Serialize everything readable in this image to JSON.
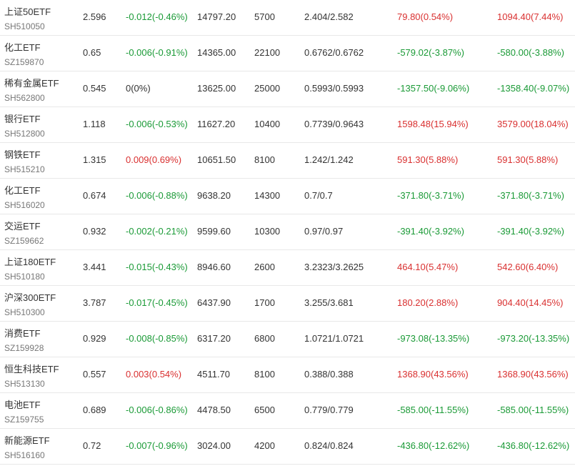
{
  "colors": {
    "up": "#d93030",
    "down": "#1a9a36",
    "flat": "#333333",
    "code": "#777777"
  },
  "rows": [
    {
      "name": "上证50ETF",
      "code": "SH510050",
      "price": "2.596",
      "change": "-0.012(-0.46%)",
      "change_dir": "down",
      "amount": "14797.20",
      "volume": "5700",
      "range": "2.404/2.582",
      "pl1": "79.80(0.54%)",
      "pl1_dir": "up",
      "pl2": "1094.40(7.44%)",
      "pl2_dir": "up"
    },
    {
      "name": "化工ETF",
      "code": "SZ159870",
      "price": "0.65",
      "change": "-0.006(-0.91%)",
      "change_dir": "down",
      "amount": "14365.00",
      "volume": "22100",
      "range": "0.6762/0.6762",
      "pl1": "-579.02(-3.87%)",
      "pl1_dir": "down",
      "pl2": "-580.00(-3.88%)",
      "pl2_dir": "down"
    },
    {
      "name": "稀有金属ETF",
      "code": "SH562800",
      "price": "0.545",
      "change": "0(0%)",
      "change_dir": "flat",
      "amount": "13625.00",
      "volume": "25000",
      "range": "0.5993/0.5993",
      "pl1": "-1357.50(-9.06%)",
      "pl1_dir": "down",
      "pl2": "-1358.40(-9.07%)",
      "pl2_dir": "down"
    },
    {
      "name": "银行ETF",
      "code": "SH512800",
      "price": "1.118",
      "change": "-0.006(-0.53%)",
      "change_dir": "down",
      "amount": "11627.20",
      "volume": "10400",
      "range": "0.7739/0.9643",
      "pl1": "1598.48(15.94%)",
      "pl1_dir": "up",
      "pl2": "3579.00(18.04%)",
      "pl2_dir": "up"
    },
    {
      "name": "钢铁ETF",
      "code": "SH515210",
      "price": "1.315",
      "change": "0.009(0.69%)",
      "change_dir": "up",
      "amount": "10651.50",
      "volume": "8100",
      "range": "1.242/1.242",
      "pl1": "591.30(5.88%)",
      "pl1_dir": "up",
      "pl2": "591.30(5.88%)",
      "pl2_dir": "up"
    },
    {
      "name": "化工ETF",
      "code": "SH516020",
      "price": "0.674",
      "change": "-0.006(-0.88%)",
      "change_dir": "down",
      "amount": "9638.20",
      "volume": "14300",
      "range": "0.7/0.7",
      "pl1": "-371.80(-3.71%)",
      "pl1_dir": "down",
      "pl2": "-371.80(-3.71%)",
      "pl2_dir": "down"
    },
    {
      "name": "交运ETF",
      "code": "SZ159662",
      "price": "0.932",
      "change": "-0.002(-0.21%)",
      "change_dir": "down",
      "amount": "9599.60",
      "volume": "10300",
      "range": "0.97/0.97",
      "pl1": "-391.40(-3.92%)",
      "pl1_dir": "down",
      "pl2": "-391.40(-3.92%)",
      "pl2_dir": "down"
    },
    {
      "name": "上证180ETF",
      "code": "SH510180",
      "price": "3.441",
      "change": "-0.015(-0.43%)",
      "change_dir": "down",
      "amount": "8946.60",
      "volume": "2600",
      "range": "3.2323/3.2625",
      "pl1": "464.10(5.47%)",
      "pl1_dir": "up",
      "pl2": "542.60(6.40%)",
      "pl2_dir": "up"
    },
    {
      "name": "沪深300ETF",
      "code": "SH510300",
      "price": "3.787",
      "change": "-0.017(-0.45%)",
      "change_dir": "down",
      "amount": "6437.90",
      "volume": "1700",
      "range": "3.255/3.681",
      "pl1": "180.20(2.88%)",
      "pl1_dir": "up",
      "pl2": "904.40(14.45%)",
      "pl2_dir": "up"
    },
    {
      "name": "消费ETF",
      "code": "SZ159928",
      "price": "0.929",
      "change": "-0.008(-0.85%)",
      "change_dir": "down",
      "amount": "6317.20",
      "volume": "6800",
      "range": "1.0721/1.0721",
      "pl1": "-973.08(-13.35%)",
      "pl1_dir": "down",
      "pl2": "-973.20(-13.35%)",
      "pl2_dir": "down"
    },
    {
      "name": "恒生科技ETF",
      "code": "SH513130",
      "price": "0.557",
      "change": "0.003(0.54%)",
      "change_dir": "up",
      "amount": "4511.70",
      "volume": "8100",
      "range": "0.388/0.388",
      "pl1": "1368.90(43.56%)",
      "pl1_dir": "up",
      "pl2": "1368.90(43.56%)",
      "pl2_dir": "up"
    },
    {
      "name": "电池ETF",
      "code": "SZ159755",
      "price": "0.689",
      "change": "-0.006(-0.86%)",
      "change_dir": "down",
      "amount": "4478.50",
      "volume": "6500",
      "range": "0.779/0.779",
      "pl1": "-585.00(-11.55%)",
      "pl1_dir": "down",
      "pl2": "-585.00(-11.55%)",
      "pl2_dir": "down"
    },
    {
      "name": "新能源ETF",
      "code": "SH516160",
      "price": "0.72",
      "change": "-0.007(-0.96%)",
      "change_dir": "down",
      "amount": "3024.00",
      "volume": "4200",
      "range": "0.824/0.824",
      "pl1": "-436.80(-12.62%)",
      "pl1_dir": "down",
      "pl2": "-436.80(-12.62%)",
      "pl2_dir": "down"
    }
  ]
}
